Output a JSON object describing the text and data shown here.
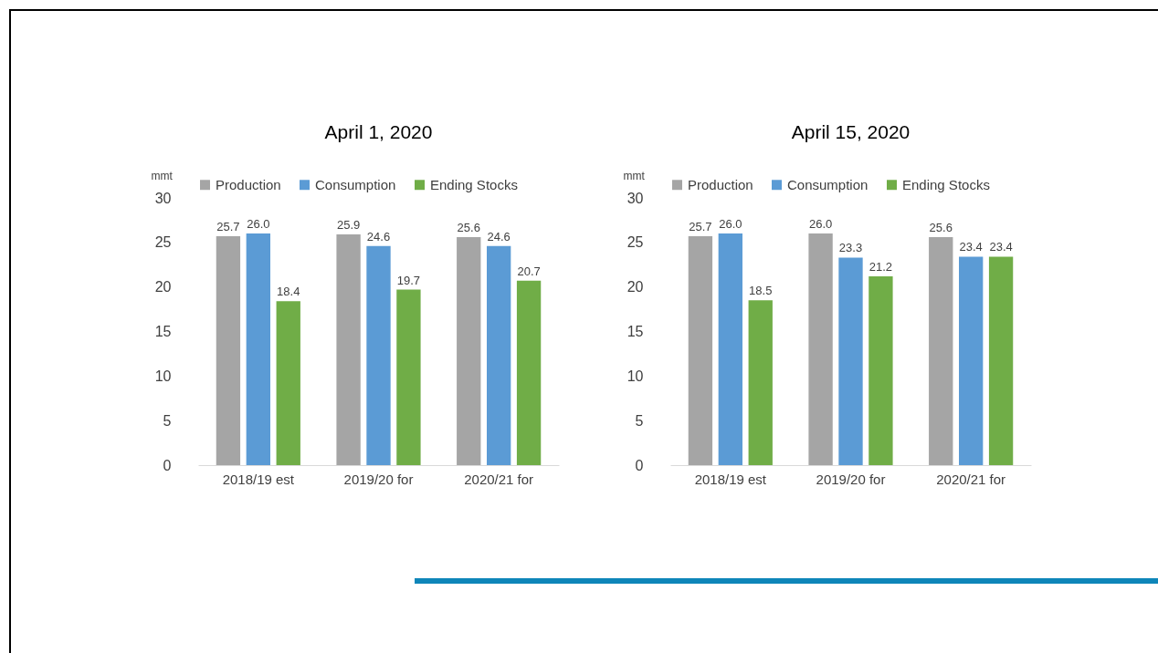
{
  "chart_data": [
    {
      "type": "bar",
      "title": "April 1, 2020",
      "ylabel": "mmt",
      "categories": [
        "2018/19 est",
        "2019/20 for",
        "2020/21 for"
      ],
      "series": [
        {
          "name": "Production",
          "color": "#a5a5a5",
          "values": [
            25.7,
            25.9,
            25.6
          ],
          "value_labels": [
            "25.7",
            "25.9",
            "25.6"
          ]
        },
        {
          "name": "Consumption",
          "color": "#5b9bd5",
          "values": [
            26.0,
            24.6,
            24.6
          ],
          "value_labels": [
            "26.0",
            "24.6",
            "24.6"
          ]
        },
        {
          "name": "Ending Stocks",
          "color": "#70ad47",
          "values": [
            18.4,
            19.7,
            20.7
          ],
          "value_labels": [
            "18.4",
            "19.7",
            "20.7"
          ]
        }
      ],
      "ylim": [
        0,
        30
      ],
      "yticks": [
        0,
        5,
        10,
        15,
        20,
        25,
        30
      ],
      "grid": false,
      "legend": "top"
    },
    {
      "type": "bar",
      "title": "April 15, 2020",
      "ylabel": "mmt",
      "categories": [
        "2018/19 est",
        "2019/20 for",
        "2020/21 for"
      ],
      "series": [
        {
          "name": "Production",
          "color": "#a5a5a5",
          "values": [
            25.7,
            26.0,
            25.6
          ],
          "value_labels": [
            "25.7",
            "26.0",
            "25.6"
          ]
        },
        {
          "name": "Consumption",
          "color": "#5b9bd5",
          "values": [
            26.0,
            23.3,
            23.4
          ],
          "value_labels": [
            "26.0",
            "23.3",
            "23.4"
          ]
        },
        {
          "name": "Ending Stocks",
          "color": "#70ad47",
          "values": [
            18.5,
            21.2,
            23.4
          ],
          "value_labels": [
            "18.5",
            "21.2",
            "23.4"
          ]
        }
      ],
      "ylim": [
        0,
        30
      ],
      "yticks": [
        0,
        5,
        10,
        15,
        20,
        25,
        30
      ],
      "grid": false,
      "legend": "top"
    }
  ]
}
